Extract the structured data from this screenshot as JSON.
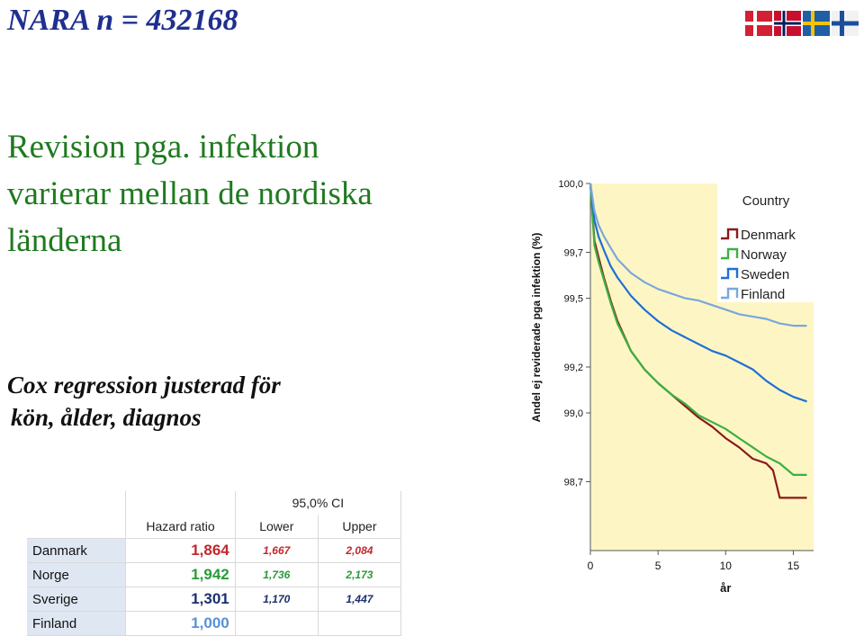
{
  "header": {
    "title": "NARA n = 432168"
  },
  "flags": [
    "Denmark",
    "Norway",
    "Sweden",
    "Finland"
  ],
  "heading": {
    "line1": "Revision pga. infektion",
    "line2": "varierar mellan de nordiska",
    "line3": "länderna"
  },
  "subtitle": {
    "line1": "Cox regression justerad för",
    "line2": "kön, ålder, diagnos"
  },
  "table": {
    "ci_header": "95,0% CI",
    "columns": [
      "Hazard ratio",
      "Lower",
      "Upper"
    ],
    "rows": [
      {
        "label": "Danmark",
        "hr": "1,864",
        "lower": "1,667",
        "upper": "2,084",
        "color": "#c0282d"
      },
      {
        "label": "Norge",
        "hr": "1,942",
        "lower": "1,736",
        "upper": "2,173",
        "color": "#2a9a3a"
      },
      {
        "label": "Sverige",
        "hr": "1,301",
        "lower": "1,170",
        "upper": "1,447",
        "color": "#1c2f6e"
      },
      {
        "label": "Finland",
        "hr": "1,000",
        "lower": "",
        "upper": "",
        "color": "#5b8fd6"
      }
    ]
  },
  "chart_data": {
    "type": "line",
    "xlabel": "år",
    "ylabel": "Andel ej reviderade pga infektion (%)",
    "xlim": [
      0,
      16.5
    ],
    "ylim": [
      98.4,
      100.0
    ],
    "x_ticks": [
      0,
      5,
      10,
      15
    ],
    "y_ticks": [
      {
        "value": 100.0,
        "label": "100,0"
      },
      {
        "value": 99.7,
        "label": "99,7"
      },
      {
        "value": 99.5,
        "label": "99,5"
      },
      {
        "value": 99.2,
        "label": "99,2"
      },
      {
        "value": 99.0,
        "label": "99,0"
      },
      {
        "value": 98.7,
        "label": "98,7"
      }
    ],
    "legend": {
      "title": "Country",
      "position": "top-right"
    },
    "background": "#fdf6c4",
    "series": [
      {
        "name": "Denmark",
        "color": "#8b1a1a",
        "x": [
          0,
          0.3,
          0.6,
          1,
          1.5,
          2,
          3,
          4,
          5,
          6,
          7,
          8,
          9,
          10,
          11,
          12,
          13,
          13.5,
          14,
          15,
          16
        ],
        "y": [
          100.0,
          99.75,
          99.68,
          99.59,
          99.49,
          99.4,
          99.27,
          99.19,
          99.13,
          99.08,
          99.03,
          98.98,
          98.94,
          98.89,
          98.85,
          98.8,
          98.78,
          98.75,
          98.63,
          98.63,
          98.63
        ]
      },
      {
        "name": "Norway",
        "color": "#3cb043",
        "x": [
          0,
          0.3,
          0.6,
          1,
          1.5,
          2,
          3,
          4,
          5,
          6,
          7,
          8,
          9,
          10,
          11,
          12,
          13,
          14,
          15,
          16
        ],
        "y": [
          100.0,
          99.73,
          99.66,
          99.58,
          99.48,
          99.39,
          99.27,
          99.19,
          99.13,
          99.08,
          99.04,
          98.99,
          98.96,
          98.93,
          98.89,
          98.85,
          98.81,
          98.78,
          98.73,
          98.73
        ]
      },
      {
        "name": "Sweden",
        "color": "#1f6fd6",
        "x": [
          0,
          0.3,
          0.6,
          1,
          1.5,
          2,
          3,
          4,
          5,
          6,
          7,
          8,
          9,
          10,
          11,
          12,
          13,
          14,
          15,
          16
        ],
        "y": [
          100.0,
          99.84,
          99.77,
          99.71,
          99.64,
          99.59,
          99.51,
          99.45,
          99.4,
          99.36,
          99.33,
          99.3,
          99.27,
          99.25,
          99.22,
          99.19,
          99.14,
          99.1,
          99.07,
          99.05
        ]
      },
      {
        "name": "Finland",
        "color": "#7aa7dc",
        "x": [
          0,
          0.3,
          0.6,
          1,
          1.5,
          2,
          3,
          4,
          5,
          6,
          7,
          8,
          9,
          10,
          11,
          12,
          13,
          14,
          15,
          16
        ],
        "y": [
          100.0,
          99.88,
          99.82,
          99.77,
          99.72,
          99.67,
          99.61,
          99.57,
          99.54,
          99.52,
          99.5,
          99.49,
          99.47,
          99.45,
          99.43,
          99.42,
          99.41,
          99.39,
          99.38,
          99.38
        ]
      }
    ]
  }
}
